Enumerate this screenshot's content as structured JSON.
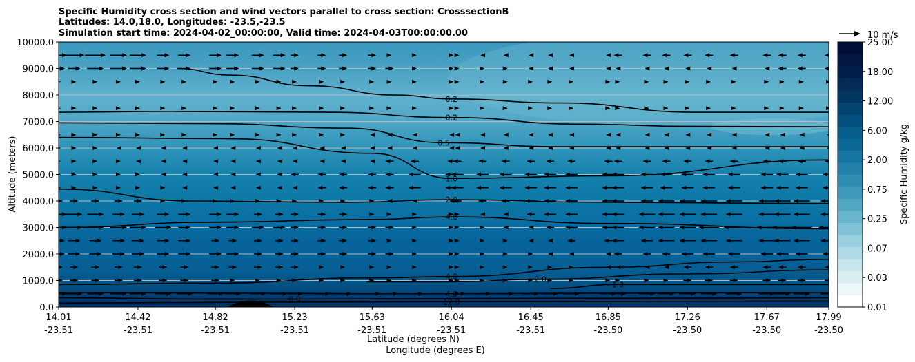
{
  "chart_data": {
    "type": "contour",
    "title_lines": [
      "Specific Humidity cross section and wind vectors parallel to cross section: CrosssectionB",
      "Latitudes: 14.0,18.0, Longitudes: -23.5,-23.5",
      "Simulation start time: 2024-04-02_00:00:00, Valid time: 2024-04-03T00:00:00.00"
    ],
    "ylabel": "Altitude (meters)",
    "xlabel_lines": [
      "Latitude (degrees N)",
      "Longitude (degrees E)"
    ],
    "ylim": [
      0,
      10000
    ],
    "y_ticks": [
      "0.0",
      "1000.0",
      "2000.0",
      "3000.0",
      "4000.0",
      "5000.0",
      "6000.0",
      "7000.0",
      "8000.0",
      "9000.0",
      "10000.0"
    ],
    "x_ticks": [
      {
        "lat": "14.01",
        "lon": "-23.51"
      },
      {
        "lat": "14.42",
        "lon": "-23.51"
      },
      {
        "lat": "14.82",
        "lon": "-23.51"
      },
      {
        "lat": "15.23",
        "lon": "-23.51"
      },
      {
        "lat": "15.63",
        "lon": "-23.51"
      },
      {
        "lat": "16.04",
        "lon": "-23.51"
      },
      {
        "lat": "16.45",
        "lon": "-23.51"
      },
      {
        "lat": "16.85",
        "lon": "-23.50"
      },
      {
        "lat": "17.26",
        "lon": "-23.50"
      },
      {
        "lat": "17.67",
        "lon": "-23.50"
      },
      {
        "lat": "17.99",
        "lon": "-23.50"
      }
    ],
    "colorbar": {
      "label": "Specific Humidity g/kg",
      "levels": [
        0.01,
        0.03,
        0.07,
        0.25,
        0.75,
        2.0,
        6.0,
        12.0,
        18.0,
        25.0
      ],
      "level_labels": [
        "0.01",
        "0.03",
        "0.07",
        "0.25",
        "0.75",
        "2.00",
        "6.00",
        "12.00",
        "18.00",
        "25.00"
      ],
      "colors": [
        "#ffffff",
        "#edf7f9",
        "#dbeff3",
        "#c6e5ed",
        "#b0dbe6",
        "#98d0df",
        "#80c3d6",
        "#68b5cd",
        "#52a7c3",
        "#3f99bb",
        "#2f8cb2",
        "#2280aa",
        "#1574a2",
        "#0b6897",
        "#065c8a",
        "#034f7d",
        "#024370",
        "#023763",
        "#022b56",
        "#011f4a",
        "#011640",
        "#010e38"
      ]
    },
    "wind_reference": {
      "label": "10 m/s",
      "speed": 10
    },
    "contours": [
      {
        "label": "0.2",
        "points": [
          [
            14.62,
            9000
          ],
          [
            14.9,
            8750
          ],
          [
            15.3,
            8350
          ],
          [
            15.75,
            8000
          ],
          [
            16.04,
            7850
          ],
          [
            16.6,
            7700
          ],
          [
            17.3,
            7350
          ],
          [
            17.99,
            7350
          ]
        ]
      },
      {
        "label": "0.2",
        "points": [
          [
            14.01,
            7350
          ],
          [
            14.6,
            7380
          ],
          [
            15.4,
            7350
          ],
          [
            16.04,
            7150
          ],
          [
            16.7,
            6900
          ],
          [
            17.26,
            6820
          ],
          [
            17.99,
            6800
          ]
        ]
      },
      {
        "label": "0.5",
        "points": [
          [
            14.01,
            6950
          ],
          [
            14.8,
            6920
          ],
          [
            15.5,
            6750
          ],
          [
            16.0,
            6200
          ],
          [
            16.6,
            6050
          ],
          [
            17.3,
            6050
          ],
          [
            17.99,
            6050
          ]
        ]
      },
      {
        "label": "1.0",
        "points": [
          [
            14.01,
            6400
          ],
          [
            14.9,
            6350
          ],
          [
            15.63,
            5800
          ],
          [
            16.04,
            4850
          ],
          [
            16.85,
            4950
          ],
          [
            17.99,
            5550
          ]
        ]
      },
      {
        "label": "2.0",
        "points": [
          [
            14.01,
            4450
          ],
          [
            14.7,
            4000
          ],
          [
            15.5,
            3950
          ],
          [
            16.04,
            4050
          ],
          [
            16.85,
            3950
          ],
          [
            17.99,
            3900
          ]
        ]
      },
      {
        "label": "4.0",
        "points": [
          [
            14.01,
            3000
          ],
          [
            14.8,
            3200
          ],
          [
            15.6,
            3300
          ],
          [
            16.04,
            3400
          ],
          [
            16.85,
            3150
          ],
          [
            17.99,
            2950
          ]
        ]
      },
      {
        "label": "4.0",
        "points": [
          [
            14.01,
            850
          ],
          [
            14.8,
            900
          ],
          [
            15.63,
            1100
          ],
          [
            16.04,
            1150
          ],
          [
            16.85,
            1500
          ],
          [
            17.5,
            1700
          ],
          [
            17.99,
            1800
          ]
        ]
      },
      {
        "label": "2.0",
        "points": [
          [
            15.6,
            950
          ],
          [
            16.04,
            950
          ],
          [
            16.5,
            1050
          ],
          [
            17.26,
            1250
          ],
          [
            17.99,
            1400
          ]
        ]
      },
      {
        "label": "4.0",
        "points": [
          [
            14.01,
            550
          ],
          [
            15.6,
            500
          ],
          [
            16.04,
            500
          ],
          [
            17.99,
            550
          ]
        ]
      },
      {
        "label": "8.0",
        "points": [
          [
            14.01,
            350
          ],
          [
            14.82,
            300
          ],
          [
            15.23,
            300
          ],
          [
            16.04,
            320
          ],
          [
            17.99,
            350
          ]
        ]
      },
      {
        "label": "12.0",
        "points": [
          [
            14.01,
            150
          ],
          [
            15.0,
            180
          ],
          [
            16.04,
            200
          ],
          [
            17.99,
            220
          ]
        ]
      },
      {
        "label": "1.0",
        "points": [
          [
            16.55,
            700
          ],
          [
            16.9,
            850
          ],
          [
            17.99,
            850
          ]
        ]
      }
    ],
    "wind_columns": [
      14.01,
      14.09,
      14.2,
      14.32,
      14.42,
      14.55,
      14.66,
      14.82,
      14.91,
      15.04,
      15.15,
      15.23,
      15.37,
      15.48,
      15.63,
      15.72,
      15.85,
      16.04,
      16.07,
      16.2,
      16.32,
      16.45,
      16.55,
      16.66,
      16.85,
      16.9,
      17.05,
      17.15,
      17.26,
      17.37,
      17.5,
      17.67,
      17.75,
      17.85,
      17.99
    ],
    "wind_rows": [
      {
        "z": 9500,
        "u": [
          4,
          5,
          5,
          4,
          4,
          3,
          3,
          3,
          3,
          3,
          3,
          2,
          2,
          2,
          2,
          1,
          1,
          1,
          1,
          -1,
          -1,
          -1,
          -1,
          -1,
          -1,
          -2,
          -2,
          -2,
          -2,
          -2,
          -2,
          -2,
          -2,
          -2,
          -2
        ]
      },
      {
        "z": 9000,
        "u": [
          3,
          3,
          4,
          4,
          4,
          3,
          3,
          3,
          3,
          3,
          3,
          2,
          2,
          2,
          2,
          2,
          1,
          1,
          1,
          1,
          1,
          -1,
          -1,
          -1,
          -1,
          -1,
          -1,
          -1,
          -1,
          -1,
          -1,
          -1,
          -2,
          -2,
          -2
        ]
      },
      {
        "z": 8500,
        "u": [
          1,
          1,
          1,
          1,
          1,
          1,
          1,
          1,
          1,
          1,
          1,
          1,
          1,
          1,
          1,
          1,
          1,
          1,
          1,
          1,
          1,
          1,
          1,
          1,
          1,
          1,
          1,
          1,
          1,
          1,
          1,
          1,
          1,
          1,
          1
        ]
      },
      {
        "z": 7500,
        "u": [
          1,
          1,
          1,
          1,
          1,
          1,
          1,
          1,
          1,
          1,
          1,
          1,
          1,
          1,
          1,
          1,
          1,
          1,
          1,
          1,
          1,
          1,
          1,
          1,
          1,
          1,
          1,
          1,
          1,
          1,
          1,
          1,
          1,
          1,
          1
        ]
      },
      {
        "z": 6500,
        "u": [
          1,
          1,
          1,
          1,
          1,
          1,
          1,
          1,
          1,
          1,
          1,
          1,
          1,
          1,
          -1,
          -1,
          -1,
          -1,
          -1,
          -1,
          -1,
          -1,
          -1,
          -1,
          -1,
          -1,
          -1,
          -1,
          -1,
          -1,
          -1,
          -1,
          -1,
          -1,
          -1
        ]
      },
      {
        "z": 6000,
        "u": [
          1,
          1,
          1,
          -1,
          -1,
          -1,
          -1,
          -1,
          -1,
          -1,
          -1,
          -1,
          -1,
          -1,
          -1,
          -1,
          -1,
          -1,
          -1,
          -1,
          -1,
          -1,
          -1,
          -1,
          -1,
          -1,
          -1,
          -1,
          -1,
          -1,
          -1,
          -1,
          -1,
          -1,
          -1
        ]
      },
      {
        "z": 5500,
        "u": [
          1,
          1,
          1,
          1,
          -1,
          -1,
          -1,
          -1,
          -1,
          -1,
          -1,
          -1,
          -1,
          -1,
          -1,
          -2,
          -2,
          -2,
          -2,
          -2,
          -2,
          -2,
          -2,
          -2,
          -2,
          -2,
          -2,
          -2,
          -2,
          -2,
          -2,
          -2,
          -2,
          -2,
          -2
        ]
      },
      {
        "z": 5000,
        "u": [
          1,
          1,
          1,
          1,
          1,
          -1,
          -1,
          -1,
          -1,
          -1,
          -1,
          -2,
          -2,
          -2,
          -2,
          -2,
          -3,
          -3,
          -3,
          -3,
          -3,
          -3,
          -3,
          -3,
          -3,
          -3,
          -3,
          -3,
          -3,
          -3,
          -3,
          -3,
          -3,
          -3,
          -3
        ]
      },
      {
        "z": 4500,
        "u": [
          1,
          1,
          1,
          1,
          1,
          1,
          -1,
          -1,
          -1,
          -1,
          -1,
          -1,
          -2,
          -2,
          -2,
          -2,
          -3,
          -3,
          -3,
          -3,
          -3,
          -3,
          -3,
          -3,
          -3,
          -3,
          -3,
          -3,
          -3,
          -3,
          -3,
          -3,
          -3,
          -3,
          -3
        ]
      },
      {
        "z": 4000,
        "u": [
          2,
          2,
          2,
          2,
          2,
          1,
          1,
          1,
          1,
          1,
          1,
          1,
          1,
          1,
          1,
          -1,
          -1,
          -1,
          -2,
          -2,
          -2,
          -3,
          -3,
          -3,
          -3,
          -3,
          -3,
          -4,
          -4,
          -4,
          -4,
          -4,
          -4,
          -4,
          -4
        ]
      },
      {
        "z": 3500,
        "u": [
          4,
          4,
          4,
          3,
          3,
          3,
          3,
          3,
          3,
          2,
          2,
          2,
          2,
          2,
          1,
          1,
          1,
          1,
          1,
          -1,
          -1,
          -2,
          -3,
          -3,
          -3,
          -3,
          -4,
          -4,
          -4,
          -4,
          -4,
          -4,
          -4,
          -4,
          -4
        ]
      },
      {
        "z": 3000,
        "u": [
          4,
          4,
          4,
          4,
          4,
          4,
          3,
          3,
          3,
          3,
          3,
          2,
          2,
          2,
          2,
          2,
          1,
          1,
          1,
          1,
          -1,
          -1,
          -2,
          -3,
          -3,
          -3,
          -4,
          -4,
          -4,
          -5,
          -5,
          -5,
          -5,
          -5,
          -5
        ]
      },
      {
        "z": 2500,
        "u": [
          3,
          3,
          3,
          3,
          3,
          3,
          3,
          2,
          2,
          2,
          2,
          2,
          2,
          2,
          2,
          1,
          1,
          1,
          1,
          1,
          1,
          -1,
          -1,
          -2,
          -2,
          -3,
          -3,
          -4,
          -4,
          -4,
          -4,
          -4,
          -4,
          -4,
          -4
        ]
      },
      {
        "z": 2000,
        "u": [
          3,
          3,
          3,
          3,
          3,
          3,
          3,
          3,
          3,
          2,
          2,
          2,
          2,
          2,
          2,
          2,
          1,
          1,
          1,
          1,
          1,
          1,
          -1,
          -1,
          -1,
          -2,
          -2,
          -2,
          -3,
          -3,
          -3,
          -3,
          -3,
          -3,
          -3
        ]
      },
      {
        "z": 1500,
        "u": [
          2,
          2,
          2,
          2,
          2,
          2,
          2,
          2,
          2,
          2,
          2,
          2,
          1,
          1,
          1,
          1,
          1,
          1,
          1,
          1,
          1,
          1,
          1,
          1,
          -1,
          -1,
          -1,
          -1,
          -2,
          -2,
          -2,
          -2,
          -2,
          -2,
          -2
        ]
      },
      {
        "z": 1000,
        "u": [
          2,
          2,
          2,
          2,
          2,
          2,
          2,
          2,
          1,
          1,
          1,
          1,
          1,
          1,
          1,
          1,
          1,
          1,
          1,
          1,
          1,
          1,
          1,
          1,
          1,
          1,
          1,
          1,
          2,
          2,
          2,
          2,
          2,
          2,
          2
        ]
      },
      {
        "z": 500,
        "u": [
          4,
          4,
          4,
          4,
          4,
          4,
          4,
          4,
          4,
          4,
          4,
          4,
          4,
          4,
          4,
          4,
          4,
          4,
          4,
          4,
          4,
          4,
          4,
          4,
          4,
          4,
          4,
          4,
          4,
          4,
          4,
          4,
          4,
          4,
          4
        ]
      }
    ]
  }
}
